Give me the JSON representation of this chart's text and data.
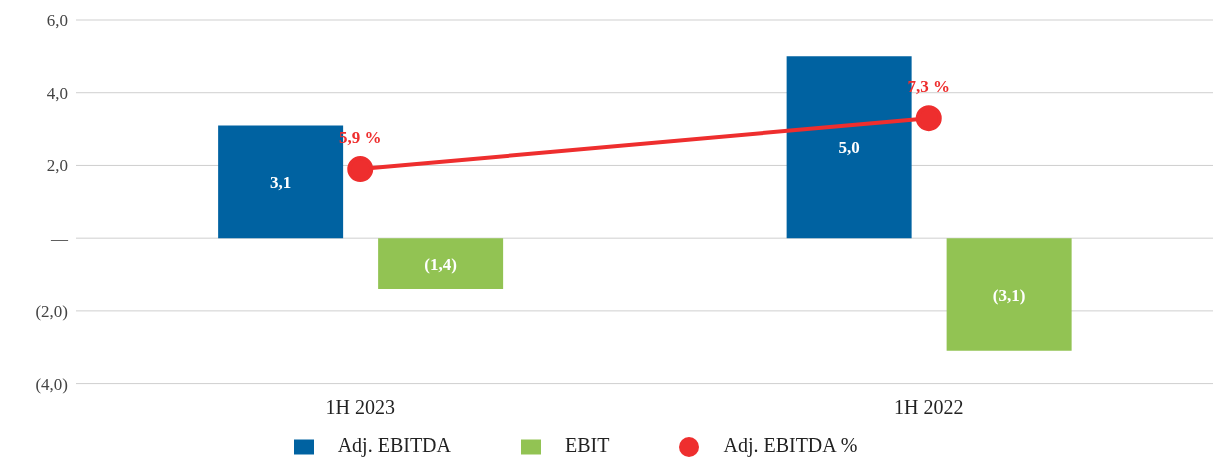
{
  "chart_data": {
    "type": "bar",
    "categories": [
      "1H 2023",
      "1H 2022"
    ],
    "series": [
      {
        "name": "Adj. EBITDA",
        "color": "#0062a1",
        "values": [
          3.1,
          5.0
        ],
        "value_labels": [
          "3,1",
          "5,0"
        ]
      },
      {
        "name": "EBIT",
        "color": "#92c353",
        "values": [
          -1.4,
          -3.1
        ],
        "value_labels": [
          "(1,4)",
          "(3,1)"
        ]
      },
      {
        "name": "Adj. EBITDA %",
        "type": "line",
        "axis": "y2",
        "color": "#ee2e2e",
        "values": [
          5.9,
          7.3
        ],
        "value_labels": [
          "5,9 %",
          "7,3 %"
        ]
      }
    ],
    "ylim": [
      -4,
      6
    ],
    "yticks": [
      {
        "value": -4,
        "label": "(4,0)"
      },
      {
        "value": -2,
        "label": "(2,0)"
      },
      {
        "value": 0,
        "label": "—"
      },
      {
        "value": 2,
        "label": "2,0"
      },
      {
        "value": 4,
        "label": "4,0"
      },
      {
        "value": 6,
        "label": "6,0"
      }
    ],
    "y2lim": [
      0,
      10
    ],
    "grid": "y",
    "legend": "bottom",
    "marker": "circle",
    "line_style": "solid"
  }
}
